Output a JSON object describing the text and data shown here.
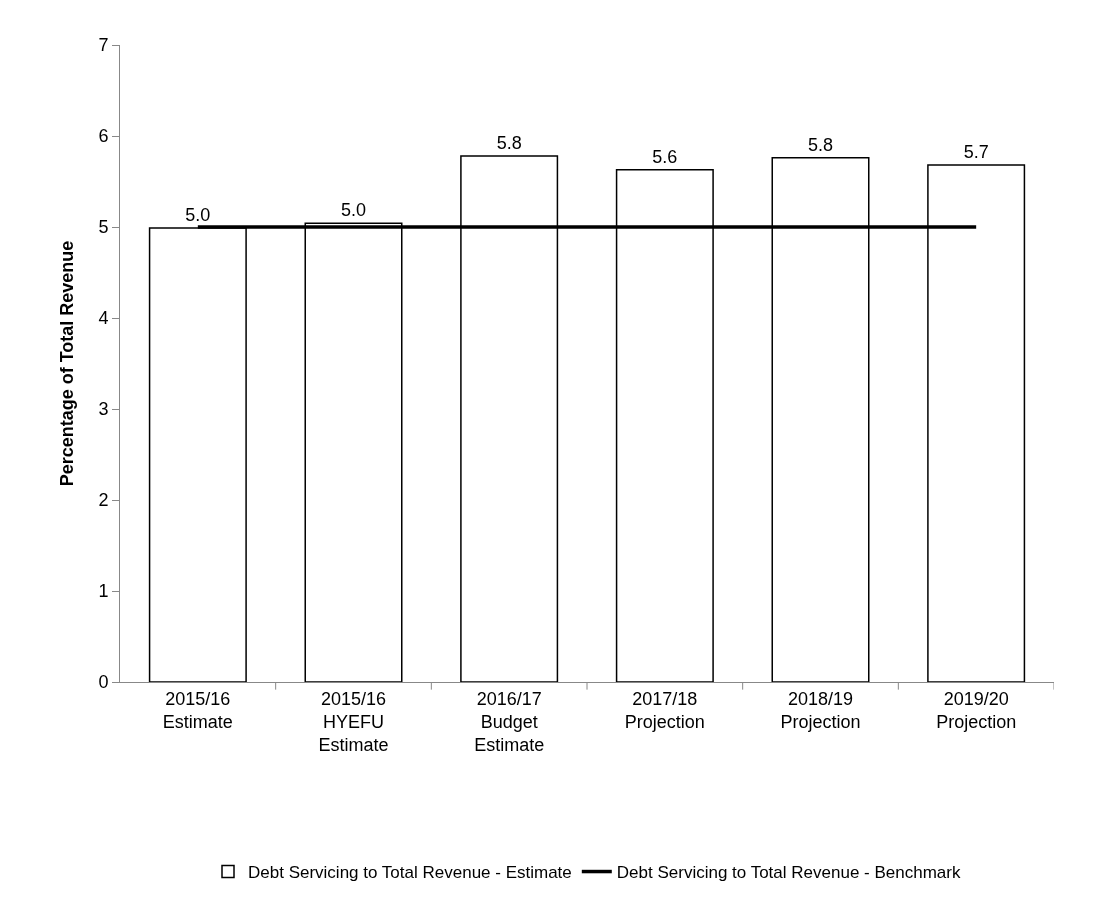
{
  "chart_data": {
    "type": "bar",
    "ylabel": "Percentage of Total Revenue",
    "categories": [
      "2015/16\nEstimate",
      "2015/16\nHYEFU\nEstimate",
      "2016/17\nBudget\nEstimate",
      "2017/18\nProjection",
      "2018/19\nProjection",
      "2019/20\nProjection"
    ],
    "series": [
      {
        "name": "Debt Servicing to Total Revenue - Estimate",
        "color": "#ffffff",
        "values": [
          4.99,
          5.04,
          5.78,
          5.63,
          5.76,
          5.68
        ],
        "value_labels": [
          "5.0",
          "5.0",
          "5.8",
          "5.6",
          "5.8",
          "5.7"
        ]
      },
      {
        "name": "Debt Servicing to Total Revenue - Benchmark",
        "type": "line",
        "color": "#000000",
        "values": [
          5,
          5,
          5,
          5,
          5,
          5
        ]
      }
    ],
    "ylim": [
      0,
      7
    ],
    "yticks": [
      0,
      1,
      2,
      3,
      4,
      5,
      6,
      7
    ],
    "grid": false,
    "legend": "bottom",
    "marker": "none",
    "line_style": "solid"
  }
}
